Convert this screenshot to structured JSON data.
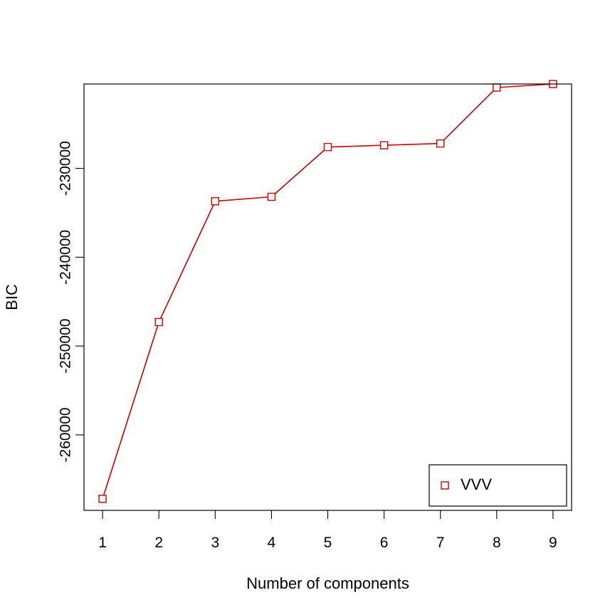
{
  "chart_data": {
    "type": "line",
    "title": "",
    "xlabel": "Number of components",
    "ylabel": "BIC",
    "x": [
      1,
      2,
      3,
      4,
      5,
      6,
      7,
      8,
      9
    ],
    "xticks": [
      1,
      2,
      3,
      4,
      5,
      6,
      7,
      8,
      9
    ],
    "xlim": [
      0.67,
      9.33
    ],
    "yticks": [
      -260000,
      -250000,
      -240000,
      -230000
    ],
    "ylim": [
      -268500,
      -220500
    ],
    "grid": false,
    "legend_position": "bottom-right",
    "series": [
      {
        "name": "VVV",
        "values": [
          -267200,
          -247300,
          -233700,
          -233200,
          -227600,
          -227400,
          -227200,
          -220900,
          -220500
        ],
        "color": "#cc0000",
        "marker": "open-square"
      }
    ]
  }
}
